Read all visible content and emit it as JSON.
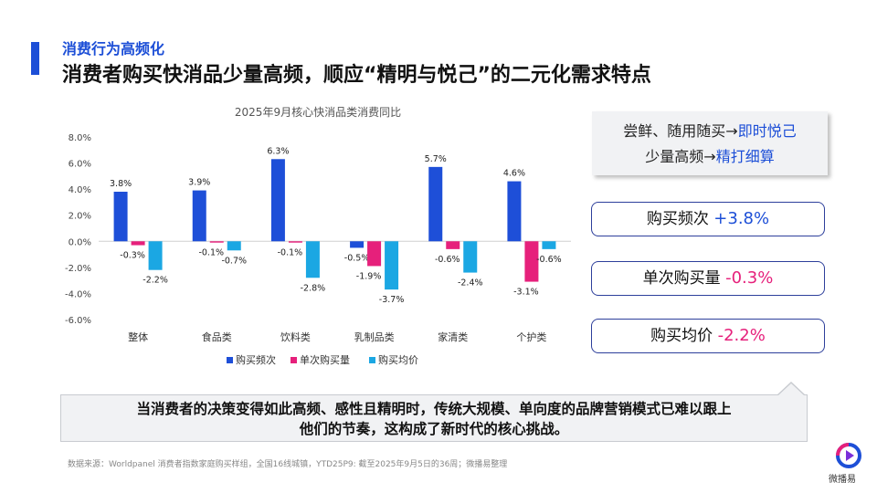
{
  "header": {
    "section": "消费行为高频化",
    "headline": "消费者购买快消品少量高频，顺应“精明与悦己”的二元化需求特点"
  },
  "chart_data": {
    "type": "bar",
    "title": "2025年9月核心快消品类消费同比",
    "categories": [
      "整体",
      "食品类",
      "饮料类",
      "乳制品类",
      "家清类",
      "个护类"
    ],
    "series": [
      {
        "name": "购买频次",
        "color": "#1e4fd8",
        "values": [
          3.8,
          3.9,
          6.3,
          -0.5,
          5.7,
          4.6
        ],
        "labels": [
          "3.8%",
          "3.9%",
          "6.3%",
          "-0.5%",
          "5.7%",
          "4.6%"
        ]
      },
      {
        "name": "单次购买量",
        "color": "#e6207b",
        "values": [
          -0.3,
          -0.1,
          -0.1,
          -1.9,
          -0.6,
          -3.1
        ],
        "labels": [
          "-0.3%",
          "-0.1%",
          "-0.1%",
          "-1.9%",
          "-0.6%",
          "-3.1%"
        ]
      },
      {
        "name": "购买均价",
        "color": "#1ba7e3",
        "values": [
          -2.2,
          -0.7,
          -2.8,
          -3.7,
          -2.4,
          -0.6
        ],
        "labels": [
          "-2.2%",
          "-0.7%",
          "-2.8%",
          "-3.7%",
          "-2.4%",
          "-0.6%"
        ]
      }
    ],
    "ylim": [
      -6,
      8
    ],
    "yticks": [
      8,
      6,
      4,
      2,
      0,
      -2,
      -4,
      -6
    ],
    "ytick_labels": [
      "8.0%",
      "6.0%",
      "4.0%",
      "2.0%",
      "0.0%",
      "-2.0%",
      "-4.0%",
      "-6.0%"
    ],
    "grid": false,
    "legend_position": "bottom"
  },
  "callout": {
    "line1_prefix": "尝鲜、随用随买→",
    "line1_highlight": "即时悦己",
    "line2_prefix": "少量高频→",
    "line2_highlight": "精打细算",
    "highlight_color": "#1d4fd7"
  },
  "metrics": [
    {
      "label": "购买频次 ",
      "value": "+3.8%",
      "color": "#1d4fd7"
    },
    {
      "label": "单次购买量 ",
      "value": "-0.3%",
      "color": "#e6207b"
    },
    {
      "label": "购买均价 ",
      "value": "-2.2%",
      "color": "#e6207b"
    }
  ],
  "bottom_text": {
    "line1": "当消费者的决策变得如此高频、感性且精明时，传统大规模、单向度的品牌营销模式已难以跟上",
    "line2": "他们的节奏，这构成了新时代的核心挑战。"
  },
  "footnote": "数据来源：Worldpanel 消费者指数家庭购买样组，全国16线城镇，YTD25P9: 截至2025年9月5日的36周；微播易整理",
  "logo": {
    "text": "微播易",
    "icon": "play-logo-icon"
  }
}
